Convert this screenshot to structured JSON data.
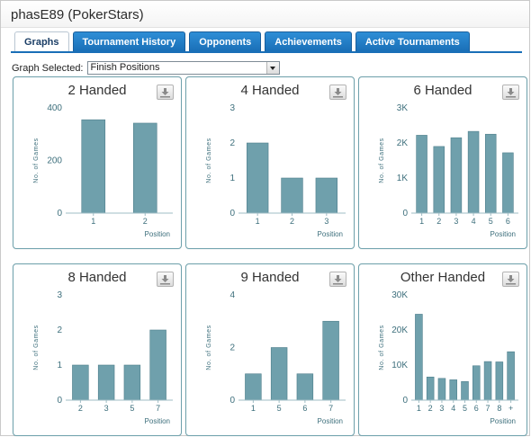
{
  "window": {
    "title": "phasE89 (PokerStars)"
  },
  "tabs": [
    {
      "label": "Graphs",
      "active": true
    },
    {
      "label": "Tournament History",
      "active": false
    },
    {
      "label": "Opponents",
      "active": false
    },
    {
      "label": "Achievements",
      "active": false
    },
    {
      "label": "Active Tournaments",
      "active": false
    }
  ],
  "selector": {
    "label": "Graph Selected:",
    "value": "Finish Positions"
  },
  "theme": {
    "bar_color": "#6fa0ac",
    "bar_stroke": "#4f7f8c",
    "tab_color": "#1a6fb7",
    "axis_color": "#3d6f7c"
  },
  "icons": {
    "download": "download-icon",
    "dropdown": "chevron-down-icon"
  },
  "chart_data": [
    {
      "type": "bar",
      "title": "2 Handed",
      "ylabel": "No. of Games",
      "xlabel": "Position",
      "categories": [
        "1",
        "2"
      ],
      "values": [
        355,
        342
      ],
      "ylim": [
        0,
        400
      ],
      "yticks": [
        "0",
        "200",
        "400"
      ]
    },
    {
      "type": "bar",
      "title": "4 Handed",
      "ylabel": "No. of Games",
      "xlabel": "Position",
      "categories": [
        "1",
        "2",
        "3"
      ],
      "values": [
        2,
        1,
        1
      ],
      "ylim": [
        0,
        3
      ],
      "yticks": [
        "0",
        "1",
        "2",
        "3"
      ]
    },
    {
      "type": "bar",
      "title": "6 Handed",
      "ylabel": "No. of Games",
      "xlabel": "Position",
      "categories": [
        "1",
        "2",
        "3",
        "4",
        "5",
        "6"
      ],
      "values": [
        2220,
        1900,
        2150,
        2330,
        2250,
        1720
      ],
      "ylim": [
        0,
        3000
      ],
      "yticks": [
        "0",
        "1K",
        "2K",
        "3K"
      ]
    },
    {
      "type": "bar",
      "title": "8 Handed",
      "ylabel": "No. of Games",
      "xlabel": "Position",
      "categories": [
        "2",
        "3",
        "5",
        "7"
      ],
      "values": [
        1,
        1,
        1,
        2
      ],
      "ylim": [
        0,
        3
      ],
      "yticks": [
        "0",
        "1",
        "2",
        "3"
      ]
    },
    {
      "type": "bar",
      "title": "9 Handed",
      "ylabel": "No. of Games",
      "xlabel": "Position",
      "categories": [
        "1",
        "5",
        "6",
        "7"
      ],
      "values": [
        1,
        2,
        1,
        3
      ],
      "ylim": [
        0,
        4
      ],
      "yticks": [
        "0",
        "2",
        "4"
      ]
    },
    {
      "type": "bar",
      "title": "Other Handed",
      "ylabel": "No. of Games",
      "xlabel": "Position",
      "categories": [
        "1",
        "2",
        "3",
        "4",
        "5",
        "6",
        "7",
        "8",
        "+"
      ],
      "values": [
        24500,
        6600,
        6200,
        5800,
        5300,
        9800,
        11000,
        10900,
        13800
      ],
      "ylim": [
        0,
        30000
      ],
      "yticks": [
        "0",
        "10K",
        "20K",
        "30K"
      ]
    }
  ]
}
